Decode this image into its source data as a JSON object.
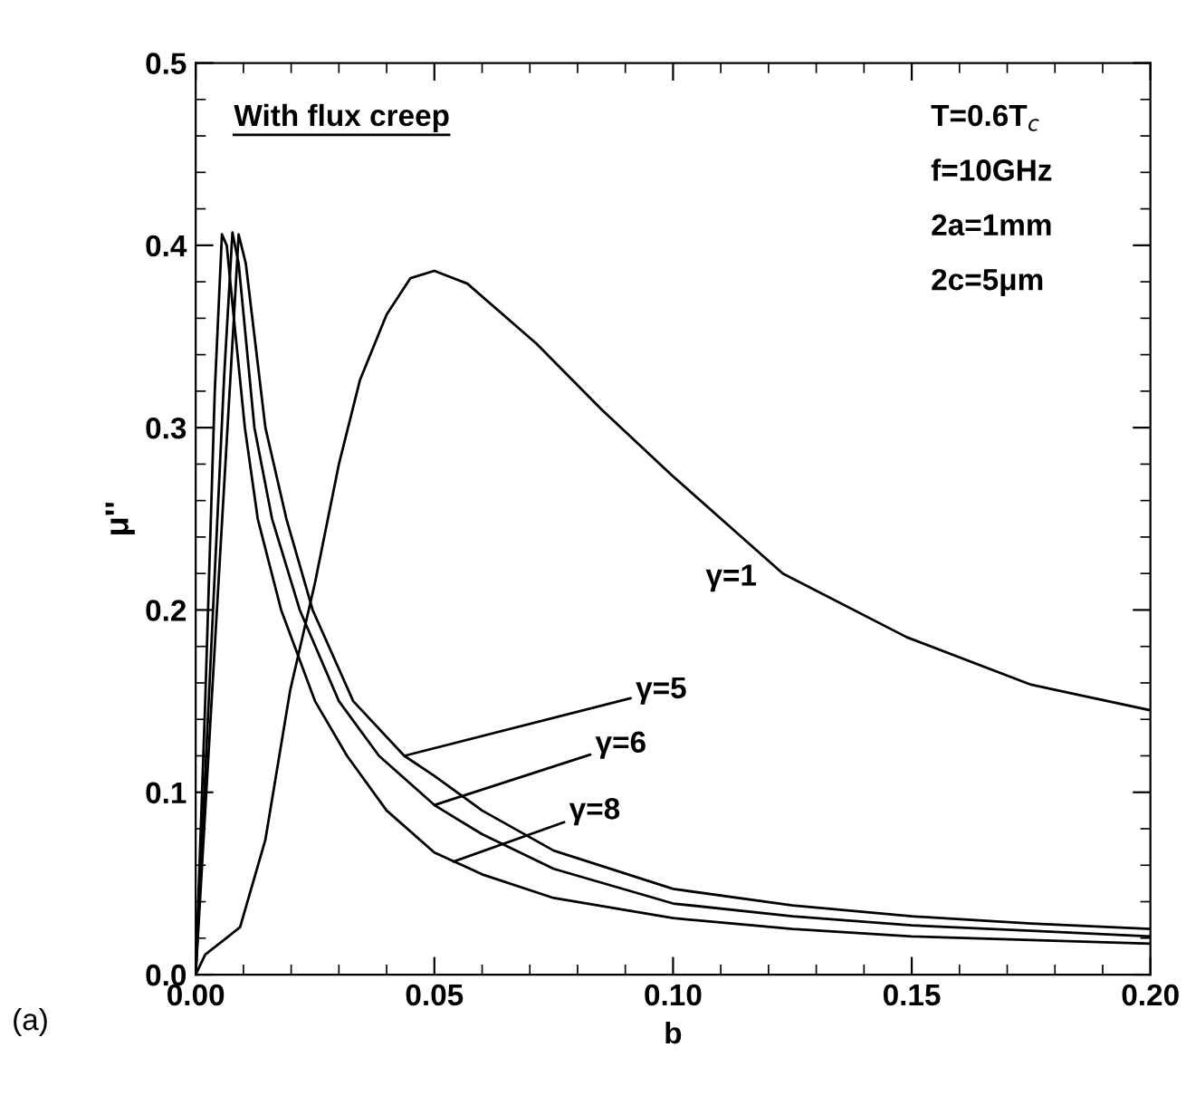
{
  "chart_data": {
    "type": "line",
    "xlabel": "b",
    "ylabel": "μ''",
    "xlim": [
      0,
      0.2
    ],
    "ylim": [
      0,
      0.5
    ],
    "xticks": [
      {
        "value": 0,
        "label": "0.00"
      },
      {
        "value": 0.05,
        "label": "0.05"
      },
      {
        "value": 0.1,
        "label": "0.10"
      },
      {
        "value": 0.15,
        "label": "0.15"
      },
      {
        "value": 0.2,
        "label": "0.20"
      }
    ],
    "yticks": [
      {
        "value": 0,
        "label": "0.0"
      },
      {
        "value": 0.1,
        "label": "0.1"
      },
      {
        "value": 0.2,
        "label": "0.2"
      },
      {
        "value": 0.3,
        "label": "0.3"
      },
      {
        "value": 0.4,
        "label": "0.4"
      },
      {
        "value": 0.5,
        "label": "0.5"
      }
    ],
    "grid": false,
    "legend": false,
    "marker": "none",
    "line_style": "solid",
    "series": [
      {
        "color": "#000000",
        "x": [
          0,
          0.002,
          0.0093,
          0.0146,
          0.0198,
          0.025,
          0.03,
          0.0344,
          0.04,
          0.045,
          0.05,
          0.0569,
          0.0714,
          0.085,
          0.0997,
          0.123,
          0.149,
          0.175,
          0.2
        ],
        "values": [
          0,
          0.011,
          0.026,
          0.074,
          0.156,
          0.215,
          0.28,
          0.326,
          0.362,
          0.382,
          0.386,
          0.379,
          0.346,
          0.31,
          0.274,
          0.22,
          0.185,
          0.159,
          0.145
        ]
      },
      {
        "color": "#000000",
        "x": [
          0,
          0.002,
          0.004,
          0.006,
          0.008,
          0.009,
          0.0105,
          0.0146,
          0.019,
          0.0245,
          0.033,
          0.0437,
          0.05,
          0.06,
          0.075,
          0.1,
          0.125,
          0.15,
          0.175,
          0.2
        ],
        "values": [
          0,
          0.09,
          0.18,
          0.27,
          0.36,
          0.406,
          0.39,
          0.3,
          0.25,
          0.2,
          0.15,
          0.12,
          0.109,
          0.09,
          0.068,
          0.047,
          0.038,
          0.032,
          0.028,
          0.025
        ]
      },
      {
        "color": "#000000",
        "x": [
          0,
          0.002,
          0.004,
          0.006,
          0.0077,
          0.009,
          0.0123,
          0.016,
          0.0218,
          0.03,
          0.0384,
          0.05,
          0.06,
          0.075,
          0.1,
          0.125,
          0.15,
          0.175,
          0.2
        ],
        "values": [
          0,
          0.11,
          0.22,
          0.33,
          0.407,
          0.39,
          0.3,
          0.25,
          0.2,
          0.15,
          0.12,
          0.093,
          0.077,
          0.058,
          0.039,
          0.032,
          0.027,
          0.024,
          0.021
        ]
      },
      {
        "color": "#000000",
        "x": [
          0,
          0.002,
          0.004,
          0.0055,
          0.0065,
          0.008,
          0.0103,
          0.013,
          0.0179,
          0.025,
          0.0317,
          0.04,
          0.05,
          0.06,
          0.075,
          0.1,
          0.125,
          0.15,
          0.175,
          0.2
        ],
        "values": [
          0,
          0.15,
          0.32,
          0.406,
          0.4,
          0.36,
          0.3,
          0.25,
          0.2,
          0.15,
          0.12,
          0.09,
          0.067,
          0.055,
          0.042,
          0.031,
          0.025,
          0.021,
          0.019,
          0.017
        ]
      }
    ],
    "annotations": [
      {
        "text": "γ=1",
        "x": 0.12,
        "y": 0.226
      },
      {
        "text": "γ=5",
        "x": 0.0437,
        "y": 0.12
      },
      {
        "text": "γ=6",
        "x": 0.05,
        "y": 0.093
      },
      {
        "text": "γ=8",
        "x": 0.054,
        "y": 0.062
      },
      "With flux creep",
      "T=0.6T$_{c}$",
      "f=10GHz",
      "2a=1mm",
      "2c=5μm",
      "(a)"
    ]
  }
}
